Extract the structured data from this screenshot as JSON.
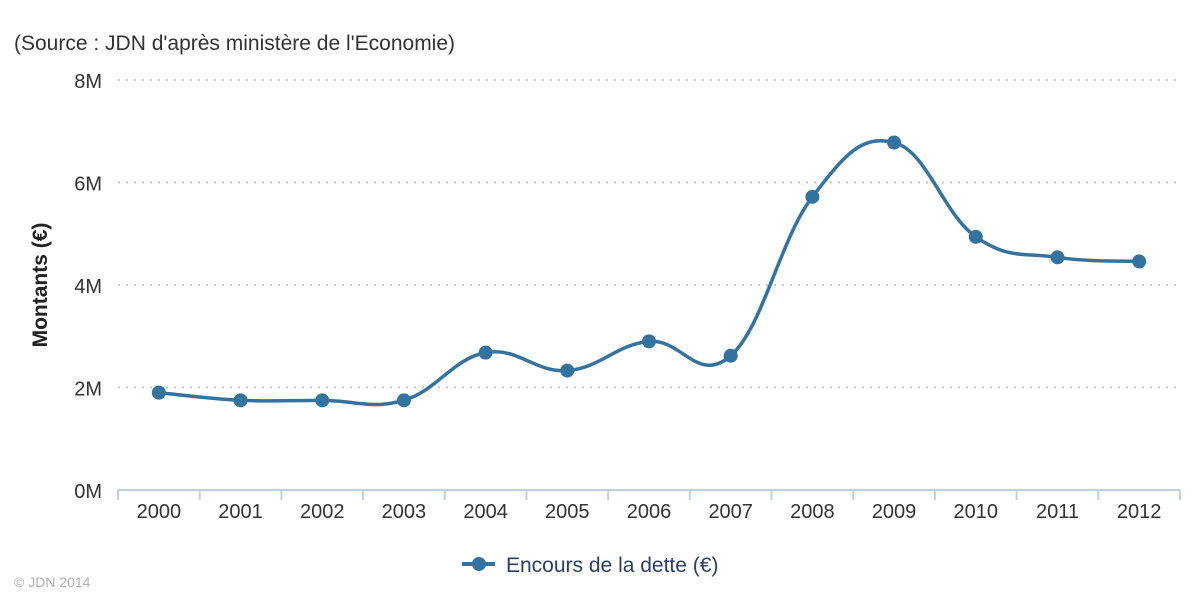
{
  "chart_data": {
    "type": "line",
    "source_note": "(Source : JDN d'après ministère de l'Economie)",
    "ylabel": "Montants (€)",
    "categories": [
      "2000",
      "2001",
      "2002",
      "2003",
      "2004",
      "2005",
      "2006",
      "2007",
      "2008",
      "2009",
      "2010",
      "2011",
      "2012"
    ],
    "y_ticks": [
      {
        "value": 0,
        "label": "0M"
      },
      {
        "value": 2000000,
        "label": "2M"
      },
      {
        "value": 4000000,
        "label": "4M"
      },
      {
        "value": 6000000,
        "label": "6M"
      },
      {
        "value": 8000000,
        "label": "8M"
      }
    ],
    "ylim": [
      0,
      8000000
    ],
    "grid": true,
    "legend_position": "bottom-center",
    "series": [
      {
        "name": "Encours de la dette (€)",
        "color": "#3473a0",
        "values": [
          1900000,
          1750000,
          1750000,
          1750000,
          2680000,
          2330000,
          2900000,
          2620000,
          5720000,
          6780000,
          4940000,
          4540000,
          4460000
        ]
      }
    ],
    "credit": "© JDN 2014"
  }
}
